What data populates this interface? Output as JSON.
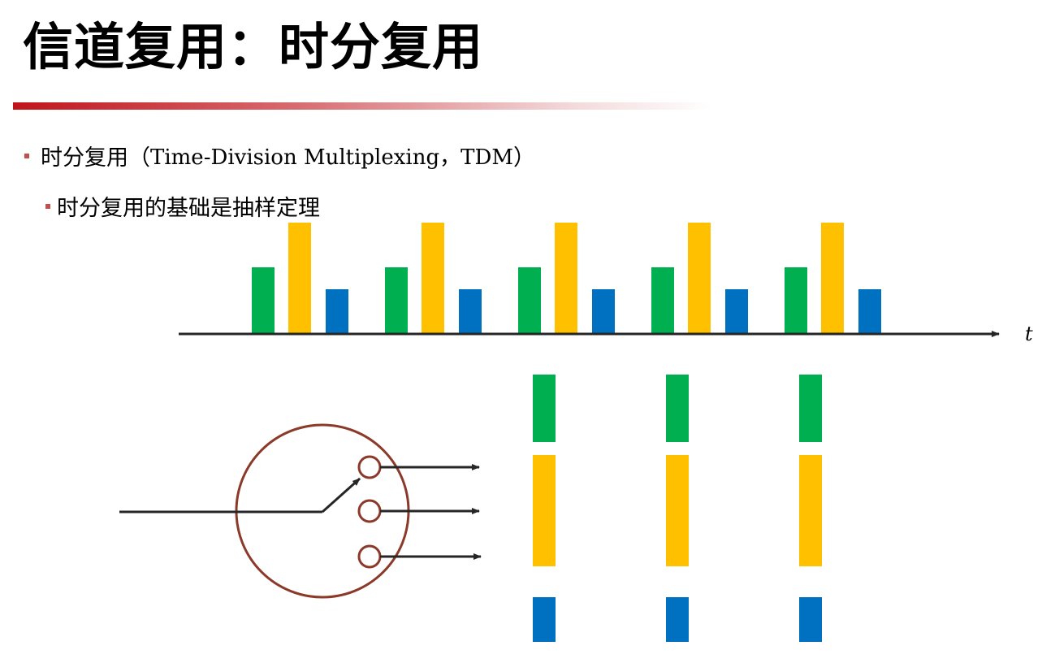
{
  "slide": {
    "title": "信道复用：时分复用",
    "bullet1": {
      "prefix": "时分复用（",
      "term": "Time-Division Multiplexing，TDM",
      "suffix": "）"
    },
    "bullet2": "时分复用的基础是抽样定理"
  },
  "diagram": {
    "axis_label": "t",
    "colors": {
      "green": "#00b050",
      "yellow": "#ffc000",
      "blue": "#0070c0",
      "circle": "#8b3a2a",
      "line": "#262626",
      "accent_bar": "#c0141c"
    },
    "timeline_groups": 5,
    "signal_levels": {
      "green": 0.6,
      "yellow": 1.0,
      "blue": 0.4
    },
    "demux_columns": 3,
    "switch_outputs": 3
  }
}
